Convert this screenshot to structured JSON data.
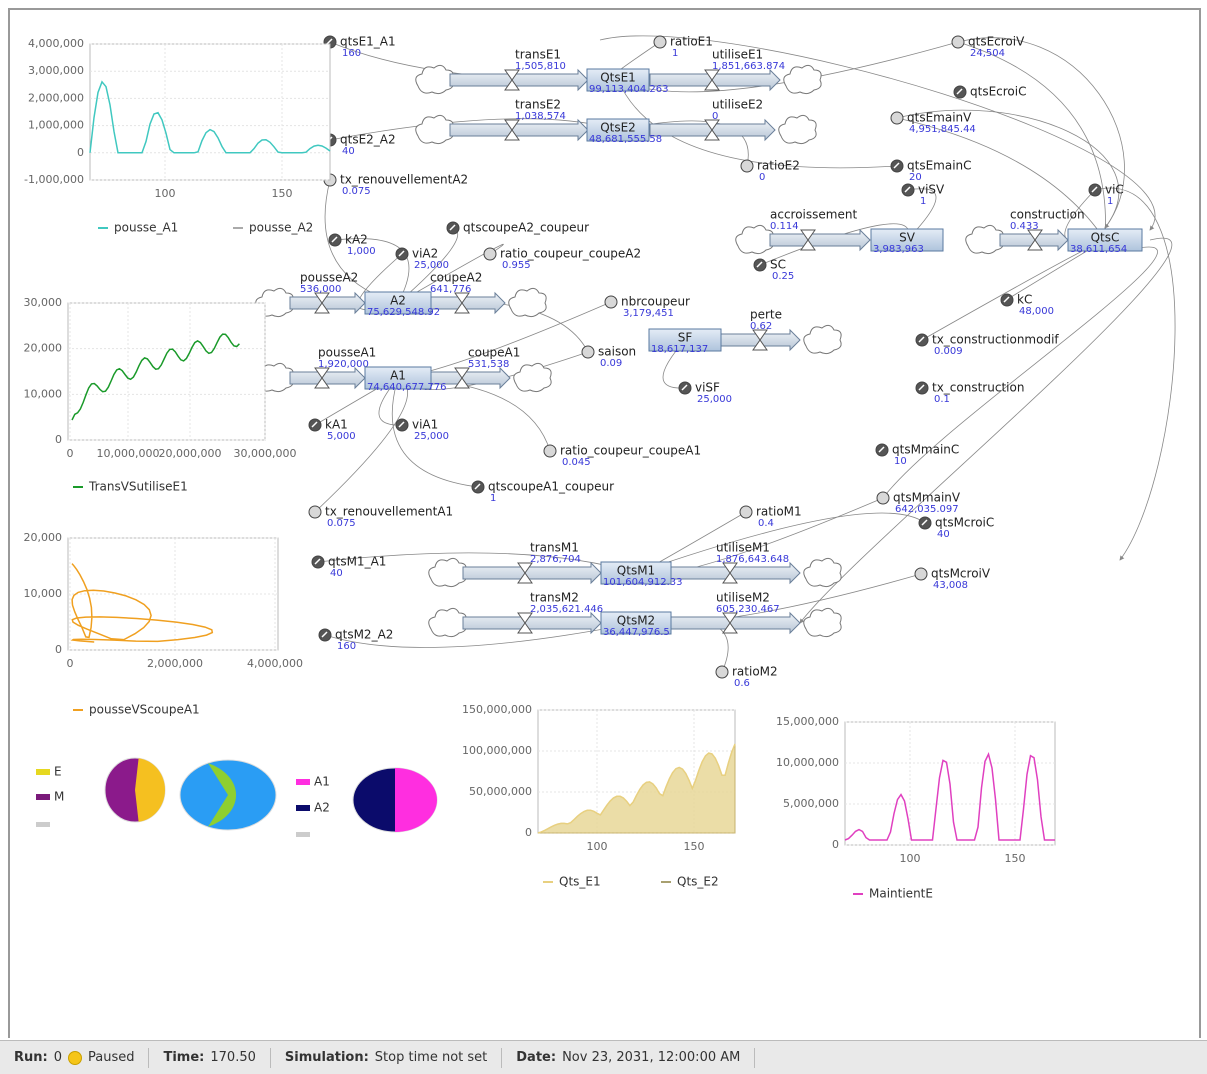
{
  "stocks": [
    {
      "label": "QtsE1",
      "value": "99,113,404.263"
    },
    {
      "label": "QtsE2",
      "value": "48,681,555.58"
    },
    {
      "label": "A2",
      "value": "75,629,548.92"
    },
    {
      "label": "A1",
      "value": "74,640,677.776"
    },
    {
      "label": "SV",
      "value": "3,983,963"
    },
    {
      "label": "QtsC",
      "value": "38,611,654"
    },
    {
      "label": "SF",
      "value": "18,617,137"
    },
    {
      "label": "QtsM1",
      "value": "101,604,912.33"
    },
    {
      "label": "QtsM2",
      "value": "36,447,976.5"
    }
  ],
  "flows": [
    {
      "label": "transE1",
      "value": "1,505,810"
    },
    {
      "label": "utiliseE1",
      "value": "1,851,663.874"
    },
    {
      "label": "transE2",
      "value": "1,038,574"
    },
    {
      "label": "utiliseE2",
      "value": "0"
    },
    {
      "label": "pousseA2",
      "value": "536,000"
    },
    {
      "label": "coupeA2",
      "value": "641,776"
    },
    {
      "label": "pousseA1",
      "value": "1,920,000"
    },
    {
      "label": "coupeA1",
      "value": "531,538"
    },
    {
      "label": "accroissement",
      "value": "0.114"
    },
    {
      "label": "construction",
      "value": "0.433"
    },
    {
      "label": "perte",
      "value": "0.62"
    },
    {
      "label": "transM1",
      "value": "2,876,704"
    },
    {
      "label": "utiliseM1",
      "value": "1,876,643.648"
    },
    {
      "label": "transM2",
      "value": "2,035,621.446"
    },
    {
      "label": "utiliseM2",
      "value": "605,230.467"
    }
  ],
  "variables": [
    {
      "label": "qtsE1_A1",
      "value": "160"
    },
    {
      "label": "ratioE1",
      "value": "1"
    },
    {
      "label": "qtsEcroiV",
      "value": "24,504"
    },
    {
      "label": "qtsEcroiC"
    },
    {
      "label": "qtsEmainV",
      "value": "4,951,845.44"
    },
    {
      "label": "qtsE2_A2",
      "value": "40"
    },
    {
      "label": "ratioE2",
      "value": "0"
    },
    {
      "label": "qtsEmainC",
      "value": "20"
    },
    {
      "label": "viSV",
      "value": "1"
    },
    {
      "label": "viC",
      "value": "1"
    },
    {
      "label": "tx_renouvellementA2",
      "value": "0.075"
    },
    {
      "label": "kA2",
      "value": "1,000"
    },
    {
      "label": "viA2",
      "value": "25,000"
    },
    {
      "label": "qtscoupeA2_coupeur"
    },
    {
      "label": "ratio_coupeur_coupeA2",
      "value": "0.955"
    },
    {
      "label": "SC",
      "value": "0.25"
    },
    {
      "label": "kC",
      "value": "48,000"
    },
    {
      "label": "nbrcoupeur",
      "value": "3,179,451"
    },
    {
      "label": "saison",
      "value": "0.09"
    },
    {
      "label": "tx_constructionmodif",
      "value": "0.009"
    },
    {
      "label": "tx_construction",
      "value": "0.1"
    },
    {
      "label": "kA1",
      "value": "5,000"
    },
    {
      "label": "viA1",
      "value": "25,000"
    },
    {
      "label": "viSF",
      "value": "25,000"
    },
    {
      "label": "ratio_coupeur_coupeA1",
      "value": "0.045"
    },
    {
      "label": "qtscoupeA1_coupeur",
      "value": "1"
    },
    {
      "label": "qtsMmainC",
      "value": "10"
    },
    {
      "label": "qtsMmainV",
      "value": "642,035.097"
    },
    {
      "label": "tx_renouvellementA1",
      "value": "0.075"
    },
    {
      "label": "ratioM1",
      "value": "0.4"
    },
    {
      "label": "qtsMcroiC",
      "value": "40"
    },
    {
      "label": "qtsM1_A1",
      "value": "40"
    },
    {
      "label": "qtsMcroiV",
      "value": "43,008"
    },
    {
      "label": "qtsM2_A2",
      "value": "160"
    },
    {
      "label": "ratioM2",
      "value": "0.6"
    }
  ],
  "charts": [
    {
      "y_ticks": [
        "4,000,000",
        "3,000,000",
        "2,000,000",
        "1,000,000",
        "0",
        "-1,000,000"
      ],
      "x_ticks": [
        "100",
        "150"
      ],
      "legend": [
        "pousse_A1",
        "pousse_A2"
      ]
    },
    {
      "y_ticks": [
        "30,000",
        "20,000",
        "10,000",
        "0"
      ],
      "x_ticks": [
        "0",
        "10,000,000",
        "20,000,000",
        "30,000,000"
      ],
      "legend": [
        "TransVSutiliseE1"
      ]
    },
    {
      "y_ticks": [
        "20,000",
        "10,000",
        "0"
      ],
      "x_ticks": [
        "0",
        "2,000,000",
        "4,000,000"
      ],
      "legend": [
        "pousseVScoupeA1"
      ]
    },
    {
      "y_ticks": [
        "150,000,000",
        "100,000,000",
        "50,000,000",
        "0"
      ],
      "x_ticks": [
        "100",
        "150"
      ],
      "legend": [
        "Qts_E1",
        "Qts_E2"
      ]
    },
    {
      "y_ticks": [
        "15,000,000",
        "10,000,000",
        "5,000,000",
        "0"
      ],
      "x_ticks": [
        "100",
        "150"
      ],
      "legend": [
        "MaintientE"
      ]
    }
  ],
  "pie_legend": [
    "E",
    "M",
    "A1",
    "A2"
  ],
  "status": {
    "run_label": "Run:",
    "run": "0",
    "state": "Paused",
    "time_label": "Time:",
    "time": "170.50",
    "simulation_label": "Simulation:",
    "simulation": "Stop time not set",
    "date_label": "Date:",
    "date": "Nov 23, 2031, 12:00:00 AM"
  }
}
